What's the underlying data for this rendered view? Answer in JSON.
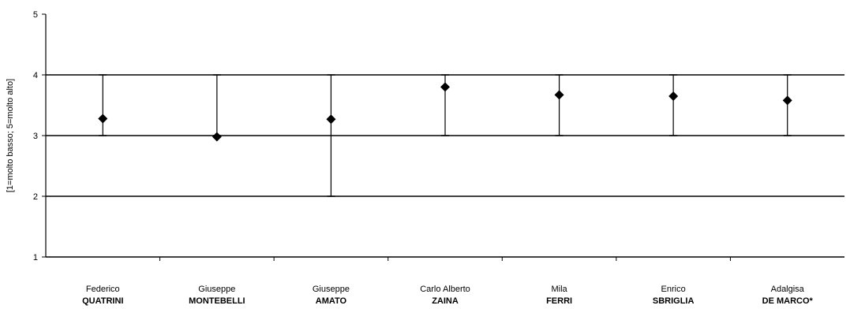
{
  "chart_data": {
    "type": "scatter",
    "title": "",
    "xlabel": "",
    "ylabel": "[1=molto basso; 5=molto alto]",
    "ylim": [
      1,
      5
    ],
    "yticks": [
      "1",
      "2",
      "3",
      "4",
      "5"
    ],
    "grid": "horizontal",
    "categories": [
      {
        "first": "Federico",
        "last": "QUATRINI"
      },
      {
        "first": "Giuseppe",
        "last": "MONTEBELLI"
      },
      {
        "first": "Giuseppe",
        "last": "AMATO"
      },
      {
        "first": "Carlo Alberto",
        "last": "ZAINA"
      },
      {
        "first": "Mila",
        "last": "FERRI"
      },
      {
        "first": "Enrico",
        "last": "SBRIGLIA"
      },
      {
        "first": "Adalgisa",
        "last": "DE MARCO*"
      }
    ],
    "values": [
      3.28,
      2.98,
      3.27,
      3.8,
      3.67,
      3.65,
      3.58
    ],
    "error_high": [
      4,
      4,
      4,
      4,
      4,
      4,
      4
    ],
    "error_low": [
      3,
      3,
      2,
      3,
      3,
      3,
      3
    ],
    "marker": "diamond",
    "colors": {
      "marker": "#000000",
      "grid": "#000000",
      "axis": "#000000"
    }
  }
}
